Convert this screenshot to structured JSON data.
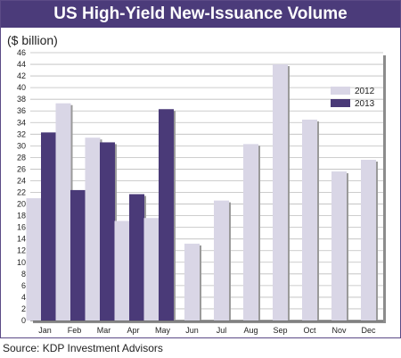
{
  "chart_data": {
    "type": "bar",
    "title": "US High-Yield New-Issuance Volume",
    "ylabel": "($ billion)",
    "xlabel": "",
    "categories": [
      "Jan",
      "Feb",
      "Mar",
      "Apr",
      "May",
      "Jun",
      "Jul",
      "Aug",
      "Sep",
      "Oct",
      "Nov",
      "Dec"
    ],
    "series": [
      {
        "name": "2012",
        "values": [
          21,
          37.3,
          31.4,
          17.1,
          17.6,
          13.2,
          20.6,
          30.3,
          44,
          34.5,
          25.6,
          27.6
        ]
      },
      {
        "name": "2013",
        "values": [
          32.3,
          22.4,
          30.6,
          21.7,
          36.3,
          null,
          null,
          null,
          null,
          null,
          null,
          null
        ]
      }
    ],
    "ylim": [
      0,
      46
    ],
    "ytick_step": 2,
    "grid": true,
    "legend_position": "top-right",
    "colors": {
      "2012": "#d9d6e6",
      "2013": "#4a3a78",
      "title_bar": "#4b3b7a"
    }
  },
  "footer": {
    "source": "Source: KDP Investment Advisors"
  }
}
